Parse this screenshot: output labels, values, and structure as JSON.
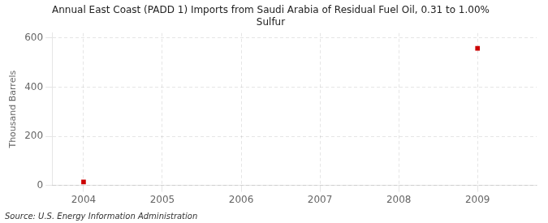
{
  "chart_data": {
    "type": "scatter",
    "title": "Annual East Coast (PADD 1) Imports from Saudi Arabia of Residual Fuel Oil, 0.31 to 1.00%\nSulfur",
    "ylabel": "Thousand Barrels",
    "source": "Source: U.S. Energy Information Administration",
    "x": [
      2004,
      2009
    ],
    "values": [
      14,
      558
    ],
    "color": "#cc0000",
    "marker": "square",
    "xlim": [
      2003.6,
      2009.75
    ],
    "ylim": [
      0,
      620
    ],
    "xticks": [
      2004,
      2005,
      2006,
      2007,
      2008,
      2009
    ],
    "yticks": [
      0,
      200,
      400,
      600
    ],
    "grid": true
  }
}
